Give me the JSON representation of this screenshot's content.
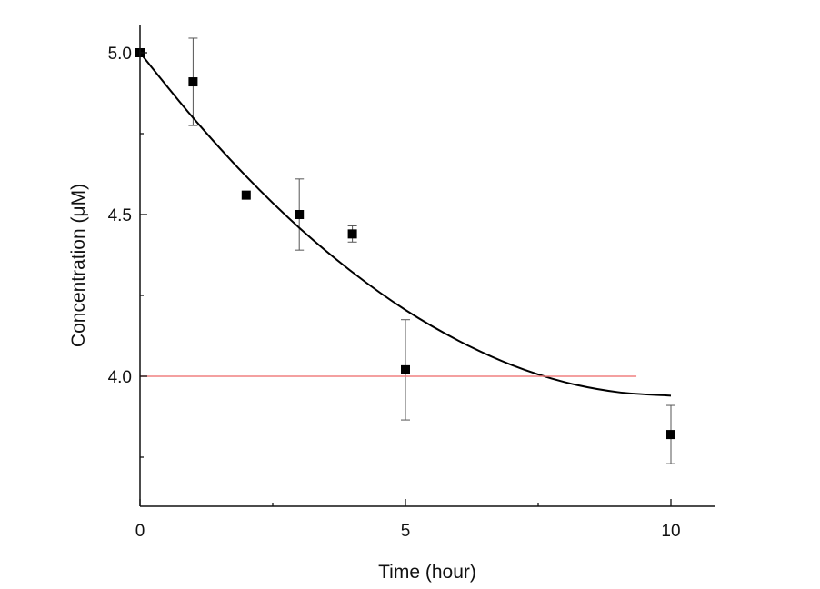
{
  "chart_data": {
    "type": "scatter",
    "xlabel": "Time (hour)",
    "ylabel": "Concentration (μM)",
    "xlim": [
      0,
      10.8
    ],
    "ylim": [
      3.6,
      5.08
    ],
    "xticks": [
      0,
      5,
      10
    ],
    "xtick_labels": [
      "0",
      "5",
      "10"
    ],
    "xminor_ticks": [
      2.5,
      7.5
    ],
    "yticks": [
      4.0,
      4.5,
      5.0
    ],
    "ytick_labels": [
      "4.0",
      "4.5",
      "5.0"
    ],
    "yminor_ticks": [
      3.75,
      4.25,
      4.75
    ],
    "grid": false,
    "series": [
      {
        "kind": "points-with-error",
        "color": "#000000",
        "x": [
          0,
          1,
          2,
          3,
          4,
          5,
          10
        ],
        "y": [
          5.0,
          4.91,
          4.56,
          4.5,
          4.44,
          4.02,
          3.82
        ],
        "error": [
          0,
          0.135,
          0,
          0.11,
          0.025,
          0.155,
          0.09
        ]
      },
      {
        "kind": "fit-line",
        "color": "#000000",
        "x": [
          0,
          1,
          2,
          3,
          4,
          5,
          6,
          7,
          8,
          9,
          10
        ],
        "y": [
          5.0,
          4.799,
          4.618,
          4.459,
          4.322,
          4.205,
          4.11,
          4.035,
          3.982,
          3.951,
          3.94
        ]
      },
      {
        "kind": "reference-line",
        "color": "#f08080",
        "x": [
          0,
          9.35
        ],
        "y": [
          4.0,
          4.0
        ]
      }
    ]
  }
}
